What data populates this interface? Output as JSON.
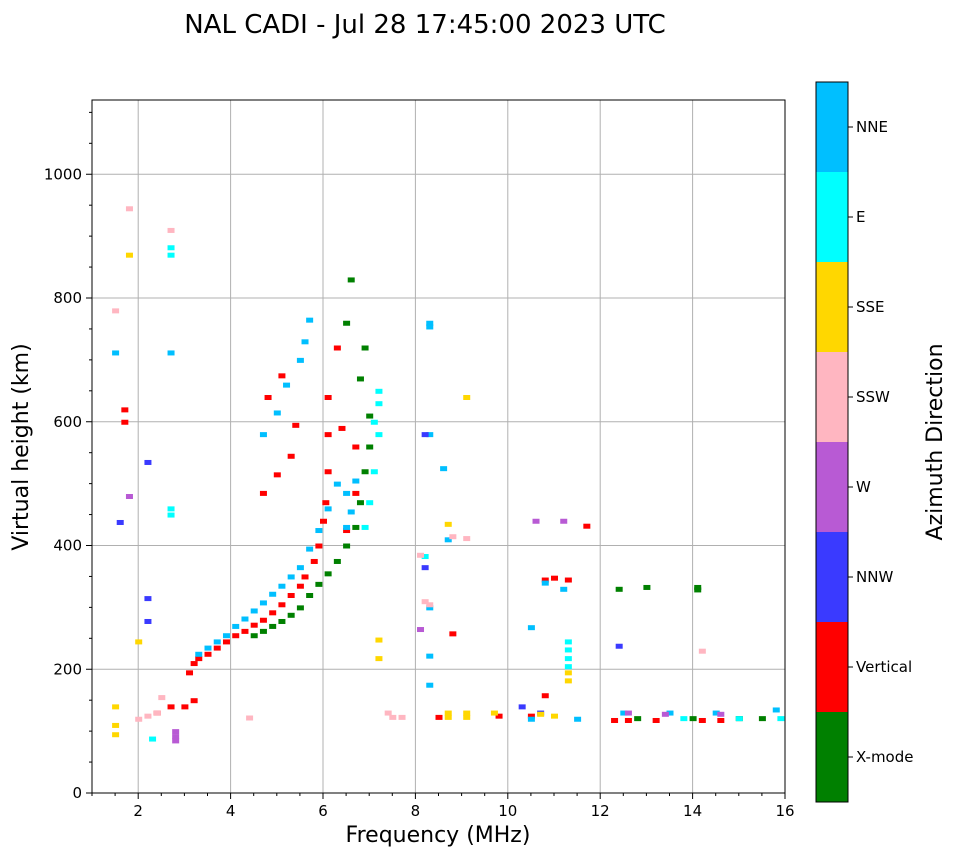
{
  "chart_data": {
    "type": "scatter",
    "title": "NAL CADI - Jul 28 17:45:00 2023 UTC",
    "xlabel": "Frequency (MHz)",
    "ylabel": "Virtual height (km)",
    "xlim": [
      1,
      16
    ],
    "ylim": [
      0,
      1120
    ],
    "xticks": [
      2,
      4,
      6,
      8,
      10,
      12,
      14,
      16
    ],
    "yticks": [
      0,
      200,
      400,
      600,
      800,
      1000
    ],
    "grid": true,
    "colorbar": {
      "title": "Azimuth Direction",
      "categories": [
        {
          "label": "X-mode",
          "color": "#008000"
        },
        {
          "label": "Vertical",
          "color": "#ff0000"
        },
        {
          "label": "NNW",
          "color": "#3a3aff"
        },
        {
          "label": "W",
          "color": "#b85ad4"
        },
        {
          "label": "SSW",
          "color": "#ffb6c1"
        },
        {
          "label": "SSE",
          "color": "#ffd700"
        },
        {
          "label": "E",
          "color": "#00ffff"
        },
        {
          "label": "NNE",
          "color": "#00bfff"
        }
      ]
    },
    "series": [
      {
        "name": "Vertical",
        "points": [
          [
            3.1,
            195
          ],
          [
            3.2,
            210
          ],
          [
            3.3,
            218
          ],
          [
            3.5,
            225
          ],
          [
            3.7,
            235
          ],
          [
            3.9,
            245
          ],
          [
            4.1,
            255
          ],
          [
            4.3,
            262
          ],
          [
            4.5,
            272
          ],
          [
            4.7,
            280
          ],
          [
            4.9,
            292
          ],
          [
            5.1,
            305
          ],
          [
            5.3,
            320
          ],
          [
            5.5,
            335
          ],
          [
            5.6,
            350
          ],
          [
            5.8,
            375
          ],
          [
            5.9,
            400
          ],
          [
            6.0,
            440
          ],
          [
            6.05,
            470
          ],
          [
            6.1,
            520
          ],
          [
            6.1,
            580
          ],
          [
            6.1,
            640
          ],
          [
            6.3,
            720
          ],
          [
            6.4,
            590
          ],
          [
            6.5,
            425
          ],
          [
            6.7,
            485
          ],
          [
            6.7,
            560
          ],
          [
            4.7,
            485
          ],
          [
            5.0,
            515
          ],
          [
            5.3,
            545
          ],
          [
            5.4,
            595
          ],
          [
            4.8,
            640
          ],
          [
            5.1,
            675
          ],
          [
            2.4,
            130
          ],
          [
            2.7,
            140
          ],
          [
            3.0,
            140
          ],
          [
            3.2,
            150
          ],
          [
            8.8,
            258
          ],
          [
            8.5,
            123
          ],
          [
            9.8,
            125
          ],
          [
            10.5,
            125
          ],
          [
            10.8,
            158
          ],
          [
            10.8,
            345
          ],
          [
            11.0,
            348
          ],
          [
            11.3,
            345
          ],
          [
            11.7,
            432
          ],
          [
            12.3,
            118
          ],
          [
            12.6,
            118
          ],
          [
            13.2,
            118
          ],
          [
            14.2,
            118
          ],
          [
            14.6,
            118
          ],
          [
            1.7,
            600
          ],
          [
            1.7,
            620
          ]
        ]
      },
      {
        "name": "X-mode",
        "points": [
          [
            4.5,
            255
          ],
          [
            4.7,
            262
          ],
          [
            4.9,
            270
          ],
          [
            5.1,
            278
          ],
          [
            5.3,
            288
          ],
          [
            5.5,
            300
          ],
          [
            5.7,
            320
          ],
          [
            5.9,
            338
          ],
          [
            6.1,
            355
          ],
          [
            6.3,
            375
          ],
          [
            6.5,
            400
          ],
          [
            6.7,
            430
          ],
          [
            6.8,
            470
          ],
          [
            6.9,
            520
          ],
          [
            7.0,
            560
          ],
          [
            7.0,
            610
          ],
          [
            6.8,
            670
          ],
          [
            6.9,
            720
          ],
          [
            6.6,
            830
          ],
          [
            6.5,
            760
          ],
          [
            12.4,
            330
          ],
          [
            13.0,
            333
          ],
          [
            14.1,
            333
          ],
          [
            14.1,
            329
          ],
          [
            15.0,
            121
          ],
          [
            15.5,
            121
          ],
          [
            12.8,
            121
          ],
          [
            14.0,
            121
          ]
        ]
      },
      {
        "name": "NNE",
        "points": [
          [
            3.3,
            225
          ],
          [
            3.5,
            235
          ],
          [
            3.7,
            245
          ],
          [
            3.9,
            255
          ],
          [
            4.1,
            270
          ],
          [
            4.3,
            282
          ],
          [
            4.5,
            295
          ],
          [
            4.7,
            308
          ],
          [
            4.9,
            322
          ],
          [
            5.1,
            335
          ],
          [
            5.3,
            350
          ],
          [
            5.5,
            365
          ],
          [
            5.7,
            395
          ],
          [
            5.9,
            425
          ],
          [
            6.1,
            460
          ],
          [
            6.3,
            500
          ],
          [
            6.5,
            485
          ],
          [
            6.6,
            455
          ],
          [
            6.7,
            505
          ],
          [
            4.7,
            580
          ],
          [
            5.0,
            615
          ],
          [
            5.2,
            660
          ],
          [
            5.5,
            700
          ],
          [
            5.6,
            730
          ],
          [
            5.7,
            765
          ],
          [
            6.5,
            430
          ],
          [
            8.3,
            760
          ],
          [
            8.3,
            754
          ],
          [
            8.3,
            580
          ],
          [
            8.6,
            525
          ],
          [
            8.7,
            410
          ],
          [
            8.3,
            300
          ],
          [
            8.3,
            222
          ],
          [
            8.3,
            175
          ],
          [
            10.5,
            268
          ],
          [
            10.8,
            340
          ],
          [
            11.2,
            330
          ],
          [
            1.5,
            712
          ],
          [
            2.7,
            712
          ],
          [
            12.5,
            130
          ],
          [
            13.5,
            130
          ],
          [
            14.5,
            130
          ],
          [
            15.8,
            135
          ],
          [
            10.5,
            120
          ],
          [
            11.5,
            120
          ]
        ]
      },
      {
        "name": "E",
        "points": [
          [
            6.9,
            430
          ],
          [
            7.0,
            470
          ],
          [
            7.1,
            520
          ],
          [
            7.2,
            580
          ],
          [
            7.2,
            630
          ],
          [
            7.2,
            650
          ],
          [
            7.1,
            600
          ],
          [
            8.2,
            383
          ],
          [
            2.7,
            450
          ],
          [
            2.7,
            460
          ],
          [
            2.7,
            882
          ],
          [
            2.7,
            870
          ],
          [
            11.3,
            245
          ],
          [
            11.3,
            232
          ],
          [
            11.3,
            218
          ],
          [
            11.3,
            205
          ],
          [
            15.9,
            121
          ],
          [
            15.0,
            121
          ],
          [
            13.8,
            121
          ],
          [
            2.3,
            88
          ]
        ]
      },
      {
        "name": "W",
        "points": [
          [
            2.8,
            100
          ],
          [
            2.8,
            92
          ],
          [
            2.8,
            85
          ],
          [
            10.6,
            440
          ],
          [
            11.2,
            440
          ],
          [
            12.6,
            130
          ],
          [
            13.4,
            128
          ],
          [
            14.6,
            128
          ],
          [
            1.8,
            480
          ],
          [
            8.1,
            265
          ]
        ]
      },
      {
        "name": "NNW",
        "points": [
          [
            8.2,
            580
          ],
          [
            8.2,
            365
          ],
          [
            10.3,
            140
          ],
          [
            10.7,
            130
          ],
          [
            12.4,
            238
          ],
          [
            1.6,
            438
          ],
          [
            2.2,
            535
          ],
          [
            2.2,
            315
          ],
          [
            2.2,
            278
          ]
        ]
      },
      {
        "name": "SSW",
        "points": [
          [
            8.1,
            385
          ],
          [
            8.2,
            310
          ],
          [
            8.3,
            305
          ],
          [
            7.4,
            130
          ],
          [
            7.5,
            123
          ],
          [
            7.7,
            123
          ],
          [
            4.4,
            122
          ],
          [
            2.5,
            155
          ],
          [
            2.4,
            130
          ],
          [
            2.2,
            125
          ],
          [
            2.0,
            120
          ],
          [
            14.2,
            230
          ],
          [
            1.5,
            780
          ],
          [
            1.8,
            945
          ],
          [
            2.7,
            910
          ],
          [
            9.1,
            412
          ],
          [
            8.8,
            415
          ]
        ]
      },
      {
        "name": "SSE",
        "points": [
          [
            8.7,
            130
          ],
          [
            8.7,
            123
          ],
          [
            9.1,
            130
          ],
          [
            9.1,
            123
          ],
          [
            9.7,
            130
          ],
          [
            10.7,
            128
          ],
          [
            11.0,
            125
          ],
          [
            11.3,
            195
          ],
          [
            11.3,
            182
          ],
          [
            9.1,
            640
          ],
          [
            8.7,
            435
          ],
          [
            7.2,
            248
          ],
          [
            7.2,
            218
          ],
          [
            1.8,
            870
          ],
          [
            2.0,
            245
          ],
          [
            1.5,
            110
          ],
          [
            1.5,
            95
          ],
          [
            1.5,
            140
          ]
        ]
      }
    ]
  }
}
